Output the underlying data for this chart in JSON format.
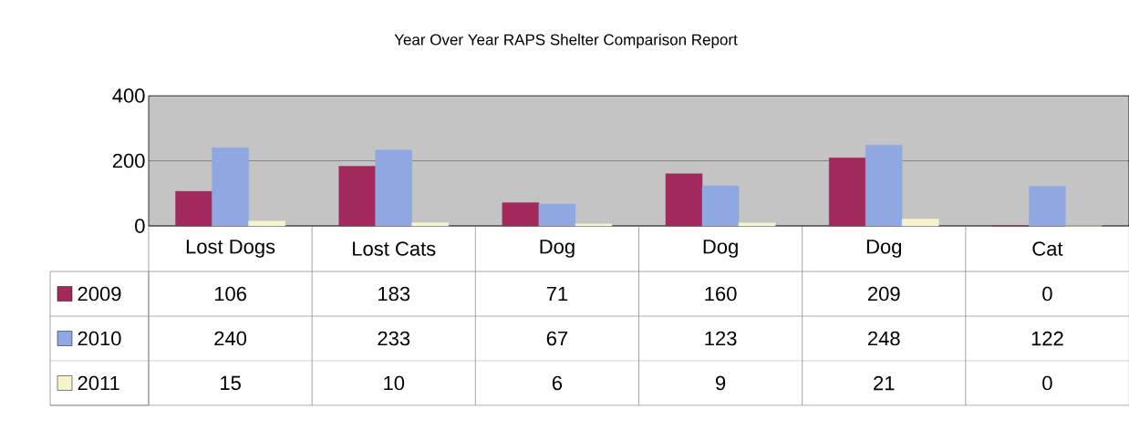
{
  "chart_data": {
    "type": "bar",
    "title": "Year Over Year RAPS Shelter Comparison Report",
    "categories": [
      "Lost Dogs",
      "Lost Cats",
      "Dog",
      "Dog",
      "Dog",
      "Cat"
    ],
    "series": [
      {
        "name": "2009",
        "color": "#a3285c",
        "values": [
          106,
          183,
          71,
          160,
          209,
          0
        ]
      },
      {
        "name": "2010",
        "color": "#90a8e2",
        "values": [
          240,
          233,
          67,
          123,
          248,
          122
        ]
      },
      {
        "name": "2011",
        "color": "#f6f4cc",
        "values": [
          15,
          10,
          6,
          9,
          21,
          0
        ]
      }
    ],
    "ylim": [
      0,
      400
    ],
    "yticks": [
      0,
      200,
      400
    ],
    "grid": "y",
    "legend": "bottom",
    "data_labels": true
  }
}
